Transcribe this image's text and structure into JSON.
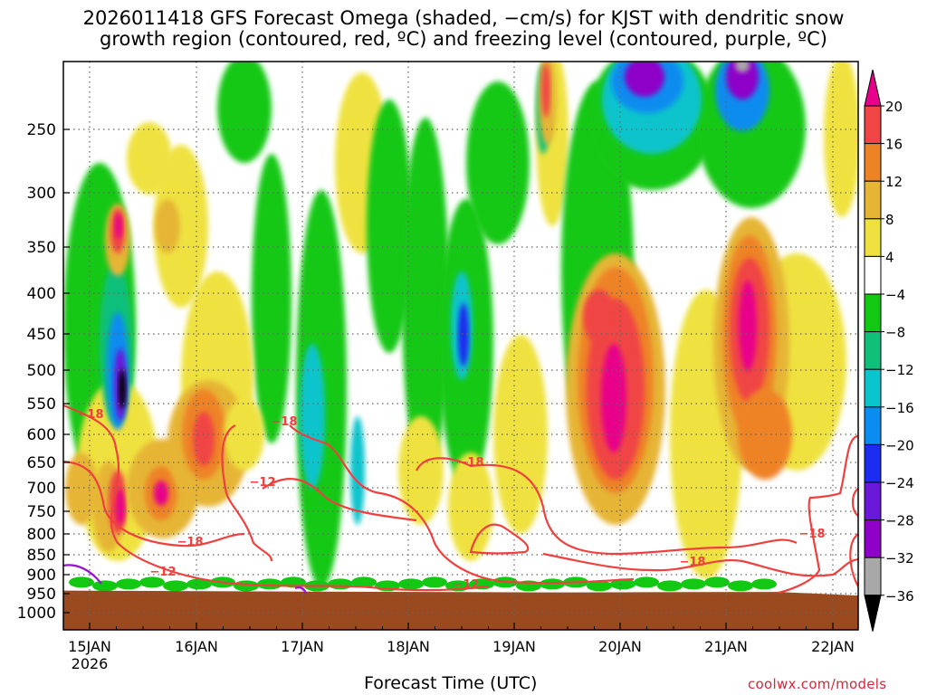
{
  "title_line1": "2026011418 GFS Forecast Omega (shaded, −cm/s) for KJST with dendritic snow",
  "title_line2": "growth region (contoured, red, ºC) and freezing level (contoured, purple, ºC)",
  "xlabel": "Forecast Time (UTC)",
  "credit": "coolwx.com/models",
  "colors": {
    "terrain": "#9a4a1e",
    "dgz_contour": "#ef4040",
    "freezing_contour": "#9a10d0",
    "grid": "#666666"
  },
  "chart_data": {
    "type": "heatmap",
    "title": "2026011418 GFS Forecast Omega (shaded, −cm/s) for KJST with dendritic snow growth region (contoured, red, ºC) and freezing level (contoured, purple, ºC)",
    "xlabel": "Forecast Time (UTC)",
    "ylabel": "",
    "x_ticks": [
      "15JAN",
      "16JAN",
      "17JAN",
      "18JAN",
      "19JAN",
      "20JAN",
      "21JAN",
      "22JAN"
    ],
    "x_tick_sublabel": "2026",
    "x_range": [
      "2026-01-14T18Z",
      "2026-01-22T06Z"
    ],
    "y_ticks": [
      250,
      300,
      350,
      400,
      450,
      500,
      550,
      600,
      650,
      700,
      750,
      800,
      850,
      900,
      950,
      1000
    ],
    "y_range_hPa": [
      200,
      1050
    ],
    "grid": true,
    "colorbar": {
      "levels": [
        -36,
        -32,
        -28,
        -24,
        -20,
        -16,
        -12,
        -8,
        -4,
        4,
        8,
        12,
        16,
        20
      ],
      "labels": [
        "20",
        "16",
        "12",
        "8",
        "4",
        "−4",
        "−8",
        "−12",
        "−16",
        "−20",
        "−24",
        "−28",
        "−32",
        "−36"
      ],
      "colors": [
        "#000000",
        "#a8a8a8",
        "#8e00c8",
        "#6a18d8",
        "#1c2cf0",
        "#0a8cf0",
        "#0cc4cc",
        "#10bf7a",
        "#12c812",
        "#ffffff",
        "#efe240",
        "#e6b535",
        "#ee8326",
        "#f04545",
        "#e8008a"
      ]
    },
    "contours": {
      "dendritic_growth_labels": [
        "−18",
        "−12"
      ],
      "freezing_level": "purple near 880 hPa early in the period"
    },
    "regions": [
      {
        "name": "strong ascent",
        "time": "20JAN",
        "pressure_hPa": [
          400,
          750
        ],
        "value": 18
      },
      {
        "name": "strong ascent",
        "time": "21JAN 06Z",
        "pressure_hPa": [
          350,
          650
        ],
        "value": 18
      },
      {
        "name": "ascent",
        "time": "15JAN 12Z",
        "pressure_hPa": [
          600,
          800
        ],
        "value": 16
      },
      {
        "name": "ascent",
        "time": "16JAN 00Z",
        "pressure_hPa": [
          550,
          750
        ],
        "value": 14
      },
      {
        "name": "subsidence core",
        "time": "15JAN 09Z",
        "pressure_hPa": [
          450,
          550
        ],
        "value": -36
      },
      {
        "name": "subsidence",
        "time": "20JAN 12Z",
        "pressure_hPa": [
          200,
          300
        ],
        "value": -28
      },
      {
        "name": "subsidence",
        "time": "21JAN 00Z",
        "pressure_hPa": [
          200,
          260
        ],
        "value": -28
      }
    ]
  }
}
